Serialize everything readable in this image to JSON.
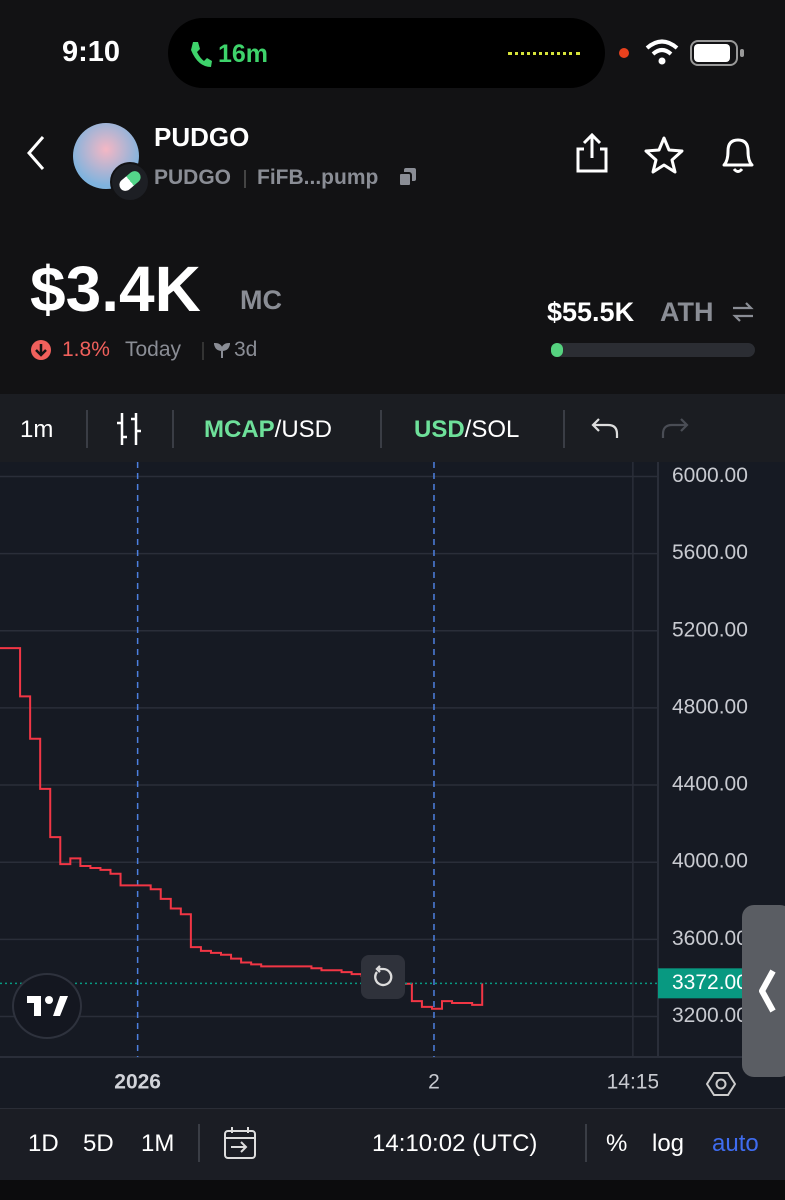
{
  "status": {
    "time": "9:10",
    "call": "16m"
  },
  "token": {
    "name": "PUDGO",
    "symbol": "PUDGO",
    "address": "FiFB...pump"
  },
  "stats": {
    "market_cap": "$3.4K",
    "market_cap_label": "MC",
    "change": "1.8%",
    "change_period": "Today",
    "age": "3d",
    "ath": "$55.5K",
    "ath_label": "ATH"
  },
  "toolbar": {
    "interval": "1m",
    "mode": [
      "MCAP",
      "/USD"
    ],
    "currency": [
      "USD",
      "/SOL"
    ]
  },
  "chart_data": {
    "type": "line",
    "step": true,
    "color": "#f23645",
    "grid": true,
    "values": [
      5110,
      5110,
      4860,
      4640,
      4380,
      4130,
      3990,
      4020,
      3980,
      3970,
      3960,
      3940,
      3880,
      3880,
      3880,
      3860,
      3810,
      3760,
      3730,
      3560,
      3540,
      3530,
      3520,
      3500,
      3480,
      3470,
      3460,
      3460,
      3460,
      3460,
      3460,
      3450,
      3440,
      3440,
      3430,
      3420,
      3410,
      3400,
      3390,
      3380,
      3370,
      3280,
      3250,
      3240,
      3280,
      3270,
      3270,
      3260,
      3372
    ],
    "last_value": {
      "value": 3372,
      "label": "3372.00"
    },
    "last_color": "#089981",
    "xlim": [
      0,
      65.5
    ],
    "xticks": [
      {
        "value": 13.7,
        "label": "2026"
      },
      {
        "value": 43.2,
        "label": "2"
      },
      {
        "value": 63,
        "label": "14:15"
      }
    ],
    "ylim": [
      2990,
      6075
    ],
    "yticks": [
      {
        "value": 3200,
        "label": "3200.00"
      },
      {
        "value": 3600,
        "label": "3600.00"
      },
      {
        "value": 4000,
        "label": "4000.00"
      },
      {
        "value": 4400,
        "label": "4400.00"
      },
      {
        "value": 4800,
        "label": "4800.00"
      },
      {
        "value": 5200,
        "label": "5200.00"
      },
      {
        "value": 5600,
        "label": "5600.00"
      },
      {
        "value": 6000,
        "label": "6000.00"
      }
    ]
  },
  "footer": {
    "ranges": [
      "1D",
      "5D",
      "1M"
    ],
    "clock": "14:10:02 (UTC)",
    "percent": "%",
    "log": "log",
    "auto": "auto"
  }
}
